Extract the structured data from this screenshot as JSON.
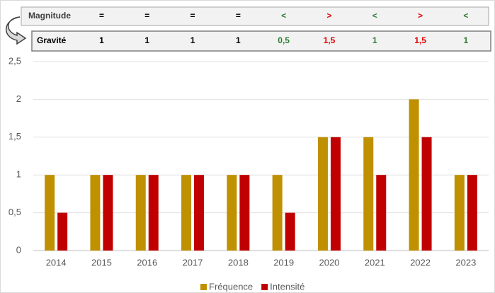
{
  "table": {
    "rows": [
      {
        "label": "Magnitude",
        "cells": [
          "=",
          "=",
          "=",
          "=",
          "<",
          ">",
          "<",
          ">",
          "<"
        ]
      },
      {
        "label": "Gravité",
        "cells": [
          "1",
          "1",
          "1",
          "1",
          "0,5",
          "1,5",
          "1",
          "1,5",
          "1"
        ]
      }
    ],
    "symbol_colors": {
      "=": "#000000",
      "<": "#2e7d32",
      ">": "#e00000"
    }
  },
  "chart_data": {
    "type": "bar",
    "categories": [
      "2014",
      "2015",
      "2016",
      "2017",
      "2018",
      "2019",
      "2020",
      "2021",
      "2022",
      "2023"
    ],
    "series": [
      {
        "name": "Fréquence",
        "color": "#bf9000",
        "values": [
          1,
          1,
          1,
          1,
          1,
          1,
          1.5,
          1.5,
          2,
          1
        ]
      },
      {
        "name": "Intensité",
        "color": "#c00000",
        "values": [
          0.5,
          1,
          1,
          1,
          1,
          0.5,
          1.5,
          1,
          1.5,
          1
        ]
      }
    ],
    "ylim": [
      0,
      2.5
    ],
    "yticks": [
      0,
      {
        "value": 0.5,
        "label": "0,5"
      },
      1,
      {
        "value": 1.5,
        "label": "1,5"
      },
      2,
      {
        "value": 2.5,
        "label": "2,5"
      }
    ],
    "grid": true,
    "legend": "bottom"
  }
}
